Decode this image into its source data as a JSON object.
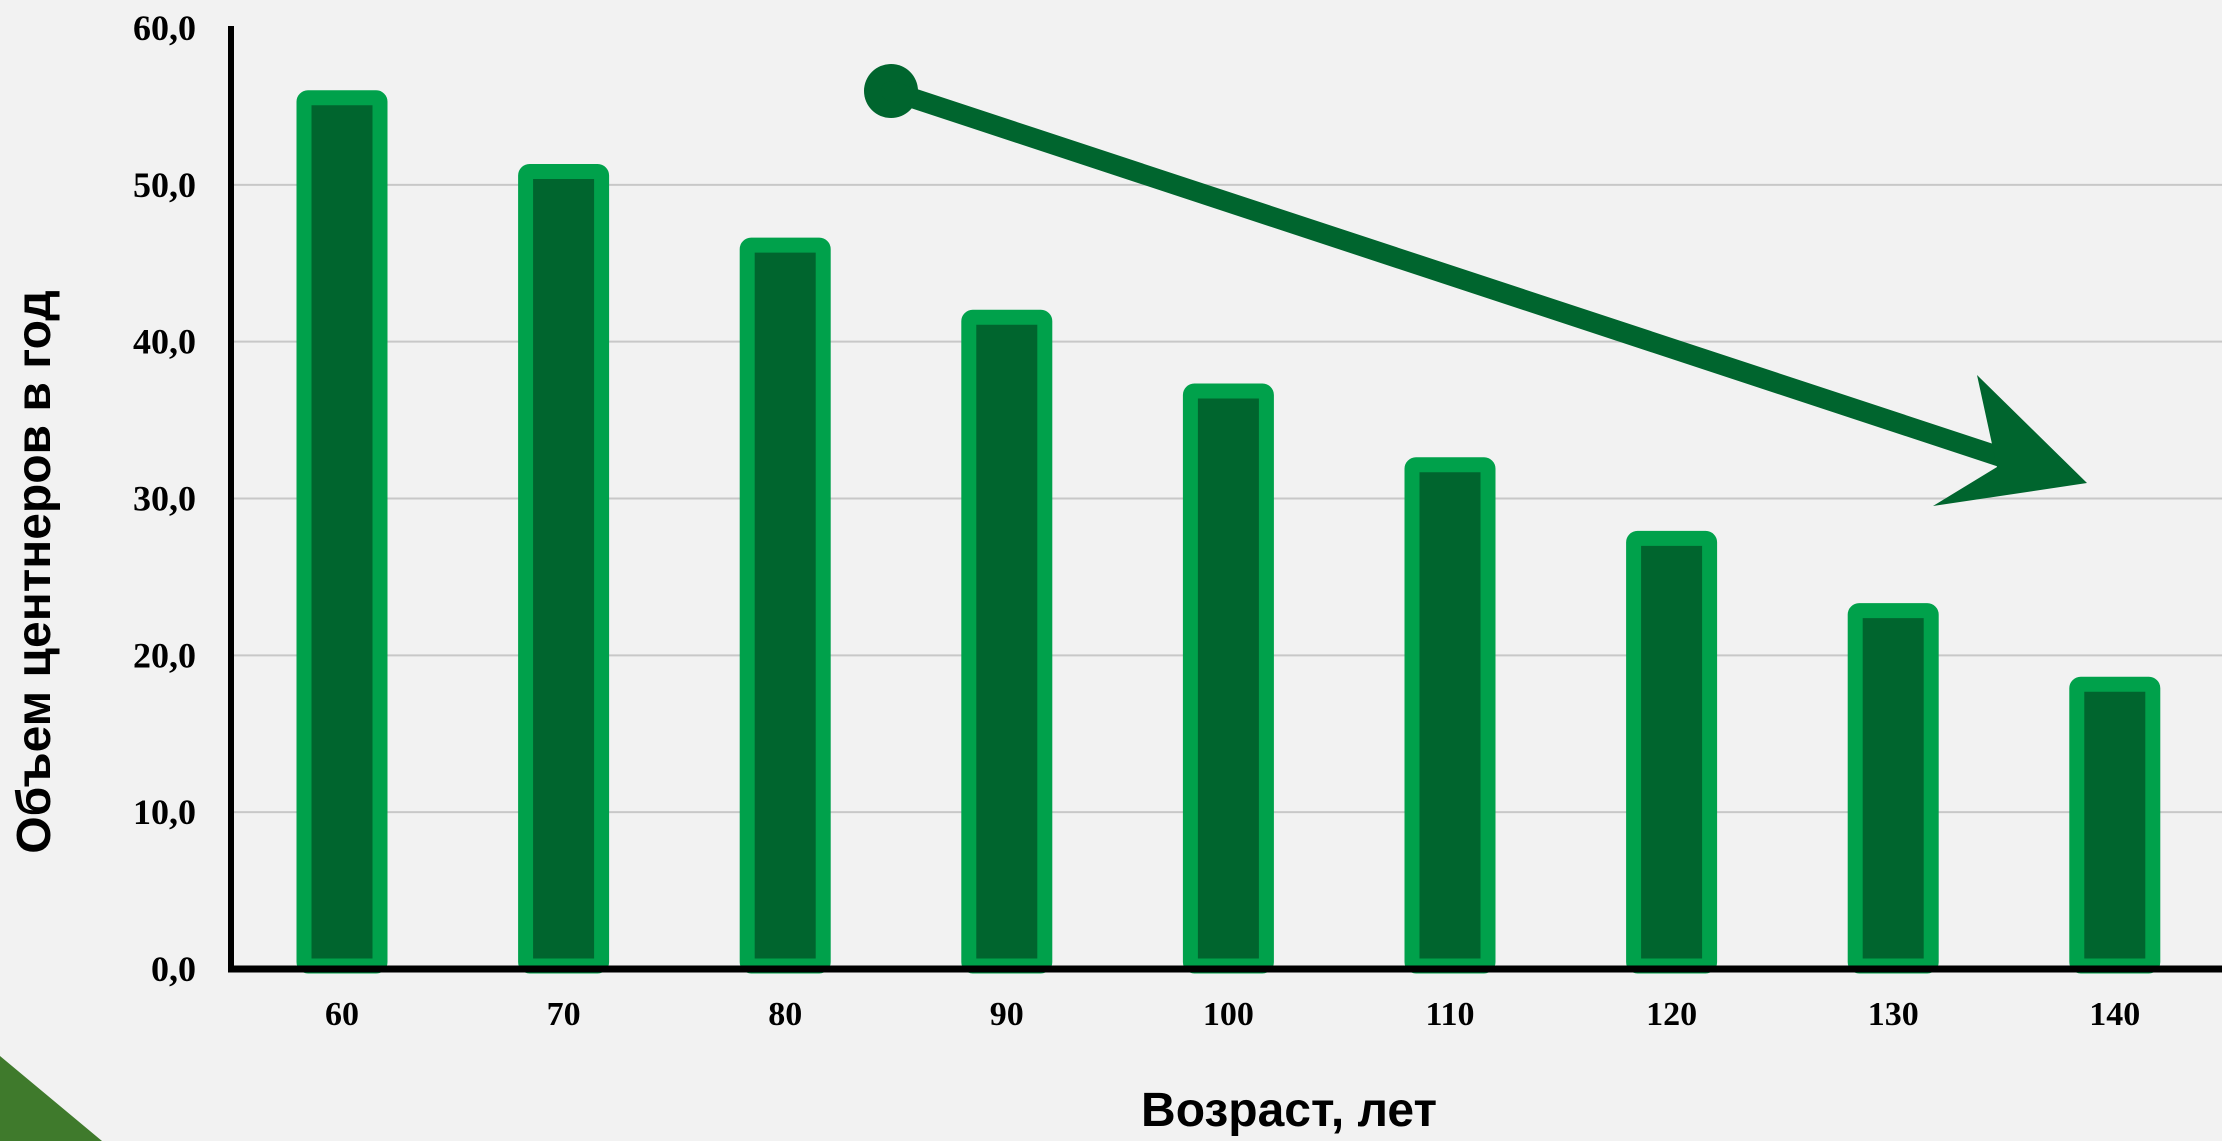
{
  "chart_data": {
    "type": "bar",
    "categories": [
      "60",
      "70",
      "80",
      "90",
      "100",
      "110",
      "120",
      "130",
      "140"
    ],
    "values": [
      56.0,
      51.3,
      46.6,
      42.0,
      37.3,
      32.6,
      27.9,
      23.3,
      18.6
    ],
    "y_ticks": [
      "0,0",
      "10,0",
      "20,0",
      "30,0",
      "40,0",
      "50,0",
      "60,0"
    ],
    "ylim": [
      0,
      60
    ],
    "xlabel": "Возраст, лет",
    "ylabel": "Объем центнеров в год",
    "title": "",
    "grid": true,
    "colors": {
      "bar_fill": "#00652e",
      "bar_border": "#00a14b",
      "trend_arrow": "#00652e",
      "grid": "#c8c8c8",
      "axis": "#000000",
      "corner_triangle": "#3f7a2c",
      "background": "#f2f2f2"
    },
    "annotations": [
      "decreasing-trend-arrow"
    ]
  }
}
